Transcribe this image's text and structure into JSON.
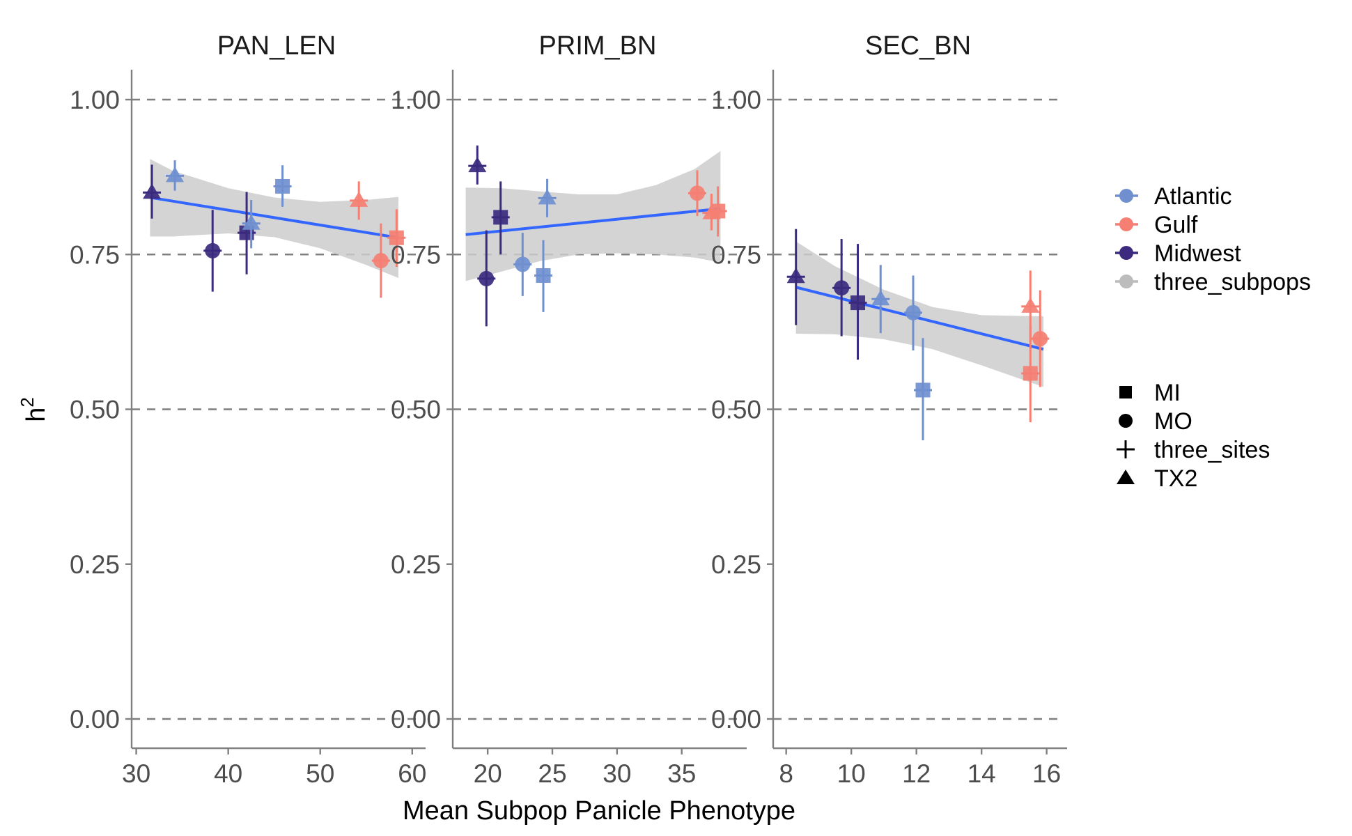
{
  "chart_data": {
    "type": "scatter",
    "xlabel": "Mean Subpop Panicle Phenotype",
    "ylabel": "h",
    "ylabel_superscript": "2",
    "ylim": [
      0,
      1
    ],
    "y_ticks": [
      "0.00",
      "0.25",
      "0.50",
      "0.75",
      "1.00"
    ],
    "y_tick_values": [
      0,
      0.25,
      0.5,
      0.75,
      1.0
    ],
    "reference_lines": [
      0,
      0.5,
      0.75,
      1.0
    ],
    "colors": {
      "Atlantic": "#6f8fcf",
      "Gulf": "#f47f72",
      "Midwest": "#3b2a7e",
      "three_subpops": "#bcbcbc",
      "fit_line": "#3366ff",
      "ribbon": "#cccccc",
      "axis": "#7f7f7f"
    },
    "legend": {
      "color_title": "",
      "color_items": [
        "Atlantic",
        "Gulf",
        "Midwest",
        "three_subpops"
      ],
      "shape_title": "",
      "shape_items": [
        {
          "label": "MI",
          "shape": "square"
        },
        {
          "label": "MO",
          "shape": "circle"
        },
        {
          "label": "three_sites",
          "shape": "plus"
        },
        {
          "label": "TX2",
          "shape": "triangle"
        }
      ],
      "placement": "right"
    },
    "facets": [
      {
        "title": "PAN_LEN",
        "xlim": [
          29.5,
          61
        ],
        "x_ticks": [
          "30",
          "40",
          "50",
          "60"
        ],
        "x_tick_values": [
          30,
          40,
          50,
          60
        ],
        "fit": {
          "x": [
            31.5,
            58.5
          ],
          "y": [
            0.842,
            0.777
          ]
        },
        "ribbon": {
          "x": [
            31.5,
            34,
            40,
            45,
            50,
            55,
            58.5
          ],
          "upper": [
            0.904,
            0.885,
            0.857,
            0.842,
            0.835,
            0.838,
            0.843
          ],
          "lower": [
            0.779,
            0.779,
            0.784,
            0.778,
            0.76,
            0.733,
            0.712
          ]
        },
        "points": [
          {
            "x": 31.7,
            "y": 0.85,
            "ymin": 0.808,
            "ymax": 0.895,
            "shape": "triangle",
            "color": "Midwest"
          },
          {
            "x": 34.2,
            "y": 0.877,
            "ymin": 0.853,
            "ymax": 0.902,
            "shape": "triangle",
            "color": "Atlantic"
          },
          {
            "x": 38.3,
            "y": 0.756,
            "ymin": 0.69,
            "ymax": 0.822,
            "shape": "circle",
            "color": "Midwest"
          },
          {
            "x": 42.0,
            "y": 0.785,
            "ymin": 0.718,
            "ymax": 0.851,
            "shape": "square",
            "color": "Midwest"
          },
          {
            "x": 42.5,
            "y": 0.8,
            "ymin": 0.76,
            "ymax": 0.838,
            "shape": "triangle",
            "color": "Atlantic"
          },
          {
            "x": 45.9,
            "y": 0.86,
            "ymin": 0.827,
            "ymax": 0.894,
            "shape": "square",
            "color": "Atlantic"
          },
          {
            "x": 54.2,
            "y": 0.837,
            "ymin": 0.806,
            "ymax": 0.868,
            "shape": "triangle",
            "color": "Gulf"
          },
          {
            "x": 56.6,
            "y": 0.74,
            "ymin": 0.68,
            "ymax": 0.8,
            "shape": "circle",
            "color": "Gulf"
          },
          {
            "x": 58.3,
            "y": 0.777,
            "ymin": 0.73,
            "ymax": 0.823,
            "shape": "square",
            "color": "Gulf"
          }
        ]
      },
      {
        "title": "PRIM_BN",
        "xlim": [
          17.3,
          39.7
        ],
        "x_ticks": [
          "20",
          "25",
          "30",
          "35"
        ],
        "x_tick_values": [
          20,
          25,
          30,
          35
        ],
        "fit": {
          "x": [
            18.3,
            38.0
          ],
          "y": [
            0.782,
            0.824
          ]
        },
        "ribbon": {
          "x": [
            18.3,
            21,
            24,
            27,
            30,
            33,
            36,
            38.0
          ],
          "upper": [
            0.858,
            0.857,
            0.852,
            0.847,
            0.847,
            0.862,
            0.888,
            0.917
          ],
          "lower": [
            0.707,
            0.722,
            0.739,
            0.75,
            0.752,
            0.75,
            0.745,
            0.737
          ]
        },
        "points": [
          {
            "x": 19.2,
            "y": 0.893,
            "ymin": 0.863,
            "ymax": 0.926,
            "shape": "triangle",
            "color": "Midwest"
          },
          {
            "x": 19.9,
            "y": 0.711,
            "ymin": 0.634,
            "ymax": 0.789,
            "shape": "circle",
            "color": "Midwest"
          },
          {
            "x": 21.0,
            "y": 0.81,
            "ymin": 0.75,
            "ymax": 0.868,
            "shape": "square",
            "color": "Midwest"
          },
          {
            "x": 22.7,
            "y": 0.734,
            "ymin": 0.683,
            "ymax": 0.785,
            "shape": "circle",
            "color": "Atlantic"
          },
          {
            "x": 24.3,
            "y": 0.716,
            "ymin": 0.657,
            "ymax": 0.773,
            "shape": "square",
            "color": "Atlantic"
          },
          {
            "x": 24.6,
            "y": 0.841,
            "ymin": 0.81,
            "ymax": 0.872,
            "shape": "triangle",
            "color": "Atlantic"
          },
          {
            "x": 36.2,
            "y": 0.849,
            "ymin": 0.812,
            "ymax": 0.886,
            "shape": "circle",
            "color": "Gulf"
          },
          {
            "x": 37.3,
            "y": 0.817,
            "ymin": 0.789,
            "ymax": 0.848,
            "shape": "triangle",
            "color": "Gulf"
          },
          {
            "x": 37.8,
            "y": 0.82,
            "ymin": 0.779,
            "ymax": 0.86,
            "shape": "square",
            "color": "Gulf"
          }
        ]
      },
      {
        "title": "SEC_BN",
        "xlim": [
          7.6,
          16.5
        ],
        "x_ticks": [
          "8",
          "10",
          "12",
          "14",
          "16"
        ],
        "x_tick_values": [
          8,
          10,
          12,
          14,
          16
        ],
        "fit": {
          "x": [
            8.3,
            15.9
          ],
          "y": [
            0.697,
            0.597
          ]
        },
        "ribbon": {
          "x": [
            8.3,
            9.5,
            11,
            12.5,
            14,
            15.9
          ],
          "upper": [
            0.771,
            0.731,
            0.693,
            0.665,
            0.652,
            0.65
          ],
          "lower": [
            0.622,
            0.621,
            0.613,
            0.597,
            0.571,
            0.536
          ]
        },
        "points": [
          {
            "x": 8.3,
            "y": 0.714,
            "ymin": 0.636,
            "ymax": 0.791,
            "shape": "triangle",
            "color": "Midwest"
          },
          {
            "x": 9.7,
            "y": 0.696,
            "ymin": 0.618,
            "ymax": 0.775,
            "shape": "circle",
            "color": "Midwest"
          },
          {
            "x": 10.2,
            "y": 0.672,
            "ymin": 0.58,
            "ymax": 0.767,
            "shape": "square",
            "color": "Midwest"
          },
          {
            "x": 10.9,
            "y": 0.678,
            "ymin": 0.623,
            "ymax": 0.733,
            "shape": "triangle",
            "color": "Atlantic"
          },
          {
            "x": 11.9,
            "y": 0.656,
            "ymin": 0.595,
            "ymax": 0.716,
            "shape": "circle",
            "color": "Atlantic"
          },
          {
            "x": 12.2,
            "y": 0.531,
            "ymin": 0.45,
            "ymax": 0.615,
            "shape": "square",
            "color": "Atlantic"
          },
          {
            "x": 15.5,
            "y": 0.666,
            "ymin": 0.609,
            "ymax": 0.724,
            "shape": "triangle",
            "color": "Gulf"
          },
          {
            "x": 15.5,
            "y": 0.558,
            "ymin": 0.479,
            "ymax": 0.636,
            "shape": "square",
            "color": "Gulf"
          },
          {
            "x": 15.8,
            "y": 0.614,
            "ymin": 0.536,
            "ymax": 0.692,
            "shape": "circle",
            "color": "Gulf"
          }
        ]
      }
    ]
  }
}
